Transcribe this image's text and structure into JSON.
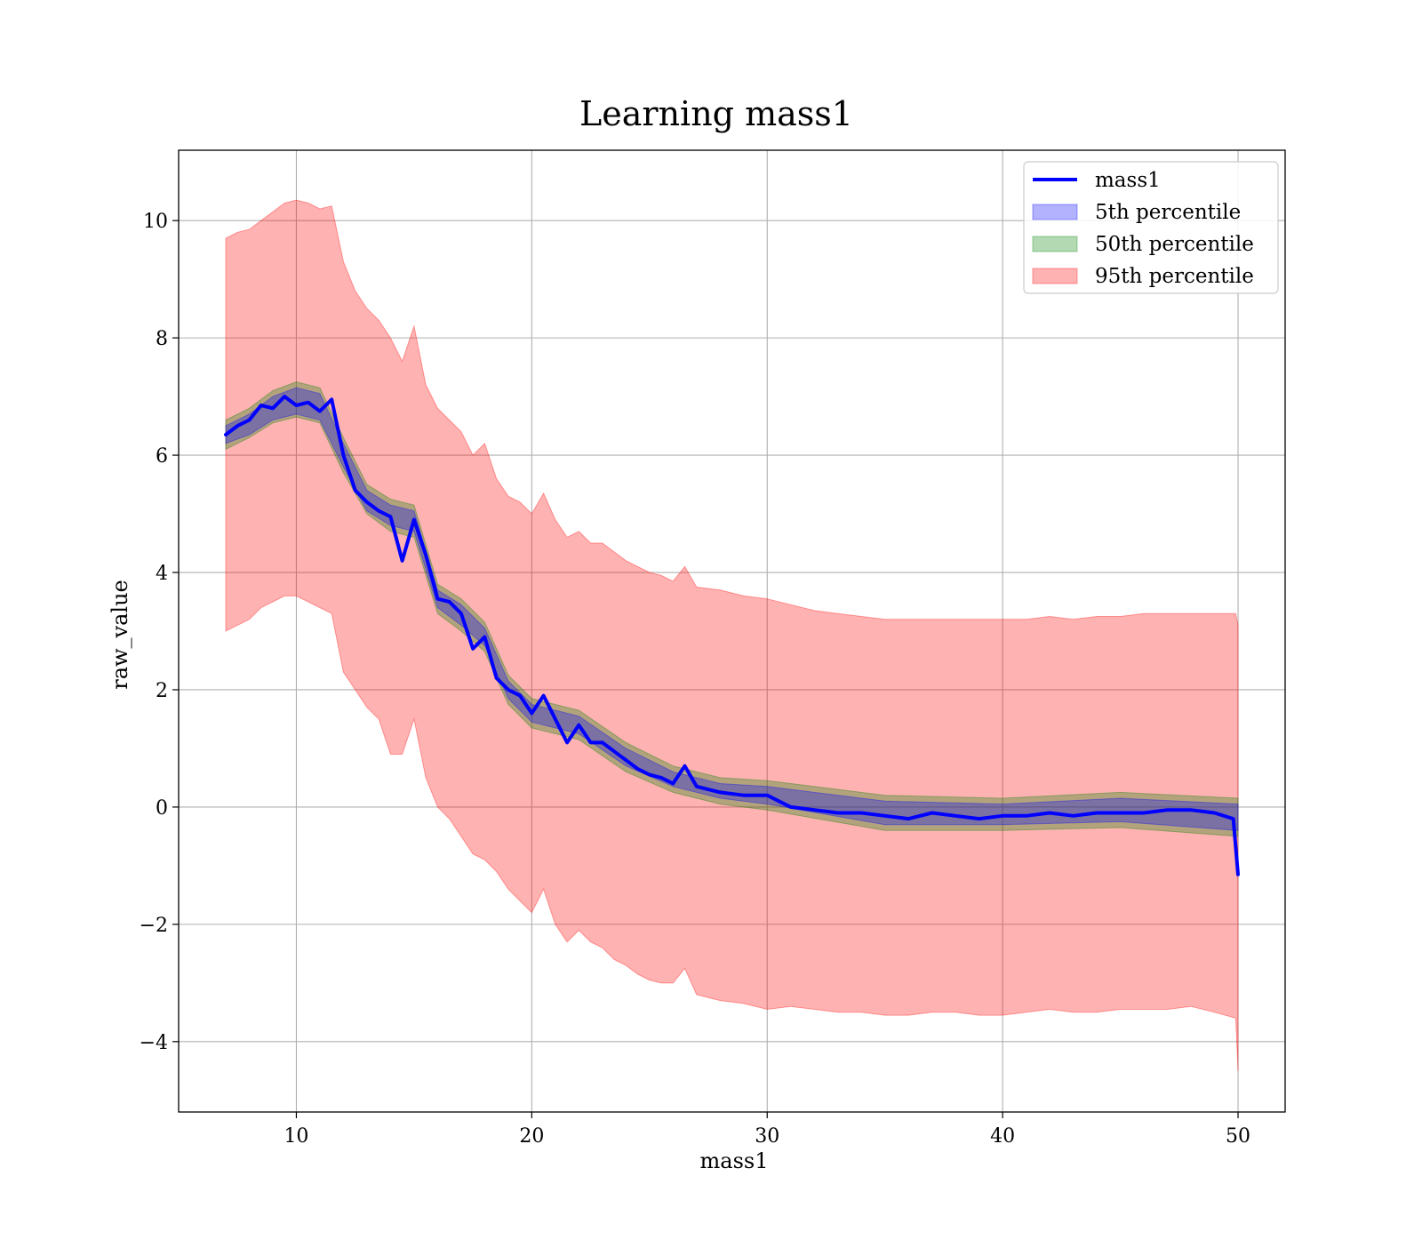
{
  "chart_data": {
    "type": "line",
    "title": "Learning mass1",
    "xlabel": "mass1",
    "ylabel": "raw_value",
    "xlim": [
      5,
      52
    ],
    "ylim": [
      -5.2,
      11.2
    ],
    "xticks": [
      10,
      20,
      30,
      40,
      50
    ],
    "yticks": [
      -4,
      -2,
      0,
      2,
      4,
      6,
      8,
      10
    ],
    "xtick_labels": [
      "10",
      "20",
      "30",
      "40",
      "50"
    ],
    "ytick_labels": [
      "−4",
      "−2",
      "0",
      "2",
      "4",
      "6",
      "8",
      "10"
    ],
    "grid": true,
    "legend_position": "top-right",
    "series": [
      {
        "name": "mass1",
        "kind": "line",
        "color": "#0000ff",
        "x": [
          7,
          7.5,
          8,
          8.5,
          9,
          9.5,
          10,
          10.5,
          11,
          11.5,
          12,
          12.5,
          13,
          13.5,
          14,
          14.5,
          15,
          15.5,
          16,
          16.5,
          17,
          17.5,
          18,
          18.5,
          19,
          19.5,
          20,
          20.5,
          21,
          21.5,
          22,
          22.5,
          23,
          23.5,
          24,
          24.5,
          25,
          25.5,
          26,
          26.5,
          27,
          28,
          29,
          30,
          31,
          32,
          33,
          34,
          35,
          36,
          37,
          38,
          39,
          40,
          41,
          42,
          43,
          44,
          45,
          46,
          47,
          48,
          49,
          49.8,
          50
        ],
        "y": [
          6.35,
          6.5,
          6.6,
          6.85,
          6.8,
          7.0,
          6.85,
          6.9,
          6.75,
          6.95,
          6.0,
          5.4,
          5.2,
          5.05,
          4.95,
          4.2,
          4.9,
          4.3,
          3.55,
          3.5,
          3.3,
          2.7,
          2.9,
          2.2,
          2.0,
          1.9,
          1.6,
          1.9,
          1.5,
          1.1,
          1.4,
          1.1,
          1.1,
          0.95,
          0.8,
          0.65,
          0.55,
          0.5,
          0.4,
          0.7,
          0.35,
          0.25,
          0.2,
          0.2,
          0.0,
          -0.05,
          -0.1,
          -0.1,
          -0.15,
          -0.2,
          -0.1,
          -0.15,
          -0.2,
          -0.15,
          -0.15,
          -0.1,
          -0.15,
          -0.1,
          -0.1,
          -0.1,
          -0.05,
          -0.05,
          -0.1,
          -0.2,
          -1.15
        ]
      },
      {
        "name": "5th percentile",
        "kind": "band",
        "color": "#0000ff",
        "x": [
          7,
          8,
          9,
          10,
          11,
          12,
          13,
          14,
          15,
          16,
          17,
          18,
          19,
          20,
          22,
          24,
          26,
          28,
          30,
          35,
          40,
          45,
          50
        ],
        "lower": [
          6.2,
          6.35,
          6.6,
          6.7,
          6.6,
          5.8,
          5.05,
          4.8,
          4.7,
          3.4,
          3.1,
          2.75,
          1.85,
          1.45,
          1.25,
          0.7,
          0.35,
          0.15,
          0.05,
          -0.3,
          -0.3,
          -0.25,
          -0.4
        ],
        "upper": [
          6.5,
          6.7,
          7.0,
          7.15,
          7.05,
          6.2,
          5.4,
          5.15,
          5.05,
          3.7,
          3.45,
          3.05,
          2.15,
          1.75,
          1.55,
          1.0,
          0.6,
          0.4,
          0.35,
          0.1,
          0.05,
          0.15,
          0.05
        ]
      },
      {
        "name": "50th percentile",
        "kind": "band",
        "color": "#008000",
        "x": [
          7,
          8,
          9,
          10,
          11,
          12,
          13,
          14,
          15,
          16,
          17,
          18,
          19,
          20,
          22,
          24,
          26,
          28,
          30,
          35,
          40,
          45,
          50
        ],
        "lower": [
          6.1,
          6.3,
          6.55,
          6.65,
          6.55,
          5.7,
          5.0,
          4.7,
          4.6,
          3.3,
          3.0,
          2.65,
          1.75,
          1.35,
          1.15,
          0.6,
          0.25,
          0.05,
          -0.05,
          -0.4,
          -0.4,
          -0.35,
          -0.5
        ],
        "upper": [
          6.6,
          6.8,
          7.1,
          7.25,
          7.15,
          6.3,
          5.5,
          5.25,
          5.15,
          3.8,
          3.55,
          3.15,
          2.25,
          1.85,
          1.65,
          1.1,
          0.7,
          0.5,
          0.45,
          0.2,
          0.15,
          0.25,
          0.15
        ]
      },
      {
        "name": "95th percentile",
        "kind": "band",
        "color": "#ff0000",
        "x": [
          7,
          7.5,
          8,
          8.5,
          9,
          9.5,
          10,
          10.5,
          11,
          11.5,
          12,
          12.5,
          13,
          13.5,
          14,
          14.5,
          15,
          15.5,
          16,
          16.5,
          17,
          17.5,
          18,
          18.5,
          19,
          19.5,
          20,
          20.5,
          21,
          21.5,
          22,
          22.5,
          23,
          23.5,
          24,
          24.5,
          25,
          25.5,
          26,
          26.5,
          27,
          28,
          29,
          30,
          31,
          32,
          33,
          34,
          35,
          36,
          37,
          38,
          39,
          40,
          41,
          42,
          43,
          44,
          45,
          46,
          47,
          48,
          49,
          49.9,
          50
        ],
        "lower": [
          3.0,
          3.1,
          3.2,
          3.4,
          3.5,
          3.6,
          3.6,
          3.5,
          3.4,
          3.3,
          2.3,
          2.0,
          1.7,
          1.5,
          0.9,
          0.9,
          1.5,
          0.5,
          0.0,
          -0.2,
          -0.5,
          -0.8,
          -0.9,
          -1.1,
          -1.4,
          -1.6,
          -1.8,
          -1.4,
          -2.0,
          -2.3,
          -2.1,
          -2.3,
          -2.4,
          -2.6,
          -2.7,
          -2.85,
          -2.95,
          -3.0,
          -3.0,
          -2.75,
          -3.2,
          -3.3,
          -3.35,
          -3.45,
          -3.4,
          -3.45,
          -3.5,
          -3.5,
          -3.55,
          -3.55,
          -3.5,
          -3.5,
          -3.55,
          -3.55,
          -3.5,
          -3.45,
          -3.5,
          -3.5,
          -3.45,
          -3.45,
          -3.45,
          -3.4,
          -3.5,
          -3.6,
          -4.5
        ],
        "upper": [
          9.7,
          9.8,
          9.85,
          10.0,
          10.15,
          10.3,
          10.35,
          10.3,
          10.2,
          10.25,
          9.3,
          8.8,
          8.5,
          8.3,
          8.0,
          7.6,
          8.2,
          7.2,
          6.8,
          6.6,
          6.4,
          6.0,
          6.2,
          5.6,
          5.3,
          5.2,
          5.0,
          5.35,
          4.9,
          4.6,
          4.7,
          4.5,
          4.5,
          4.35,
          4.2,
          4.1,
          4.0,
          3.95,
          3.85,
          4.1,
          3.75,
          3.7,
          3.6,
          3.55,
          3.45,
          3.35,
          3.3,
          3.25,
          3.2,
          3.2,
          3.2,
          3.2,
          3.2,
          3.2,
          3.2,
          3.25,
          3.2,
          3.25,
          3.25,
          3.3,
          3.3,
          3.3,
          3.3,
          3.3,
          3.1
        ]
      }
    ]
  }
}
